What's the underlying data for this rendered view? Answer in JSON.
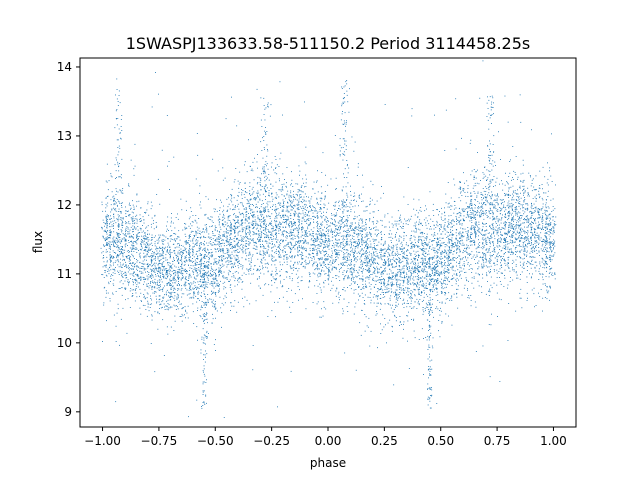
{
  "chart_data": {
    "type": "scatter",
    "title": "1SWASPJ133633.58-511150.2 Period 3114458.25s",
    "xlabel": "phase",
    "ylabel": "flux",
    "xlim": [
      -1.1,
      1.1
    ],
    "ylim": [
      8.78,
      14.13
    ],
    "x_ticks": [
      -1.0,
      -0.75,
      -0.5,
      -0.25,
      0.0,
      0.25,
      0.5,
      0.75,
      1.0
    ],
    "x_tick_labels": [
      "−1.00",
      "−0.75",
      "−0.50",
      "−0.25",
      "0.00",
      "0.25",
      "0.50",
      "0.75",
      "1.00"
    ],
    "y_ticks": [
      9,
      10,
      11,
      12,
      13,
      14
    ],
    "y_tick_labels": [
      "9",
      "10",
      "11",
      "12",
      "13",
      "14"
    ],
    "grid": false,
    "legend": "none",
    "point_color": "#1f77b4",
    "series": [
      {
        "description_of_shape": "phase-folded light curve, dense point cloud repeated for phase -1..0 and 0..1",
        "profile_phase": [
          0.0,
          0.05,
          0.1,
          0.15,
          0.2,
          0.25,
          0.3,
          0.35,
          0.4,
          0.45,
          0.5,
          0.55,
          0.6,
          0.65,
          0.7,
          0.75,
          0.8,
          0.85,
          0.9,
          0.95,
          1.0
        ],
        "profile_median_flux": [
          11.45,
          11.5,
          11.4,
          11.35,
          11.2,
          11.1,
          11.05,
          11.1,
          11.2,
          11.1,
          11.2,
          11.4,
          11.55,
          11.7,
          11.65,
          11.6,
          11.65,
          11.7,
          11.6,
          11.5,
          11.45
        ],
        "profile_spread": [
          0.35,
          0.4,
          0.4,
          0.4,
          0.35,
          0.35,
          0.35,
          0.35,
          0.35,
          0.4,
          0.4,
          0.35,
          0.4,
          0.4,
          0.4,
          0.4,
          0.4,
          0.4,
          0.4,
          0.4,
          0.35
        ],
        "eclipse_dips": [
          {
            "phase": -0.55,
            "min_flux": 9.05
          },
          {
            "phase": 0.45,
            "min_flux": 9.05
          }
        ],
        "outlier_spikes": [
          {
            "phase": -0.93,
            "max_flux": 13.85
          },
          {
            "phase": 0.07,
            "max_flux": 13.85
          },
          {
            "phase": 0.72,
            "max_flux": 13.6
          },
          {
            "phase": -0.28,
            "max_flux": 13.6
          }
        ],
        "approx_point_count": 9000
      }
    ]
  }
}
